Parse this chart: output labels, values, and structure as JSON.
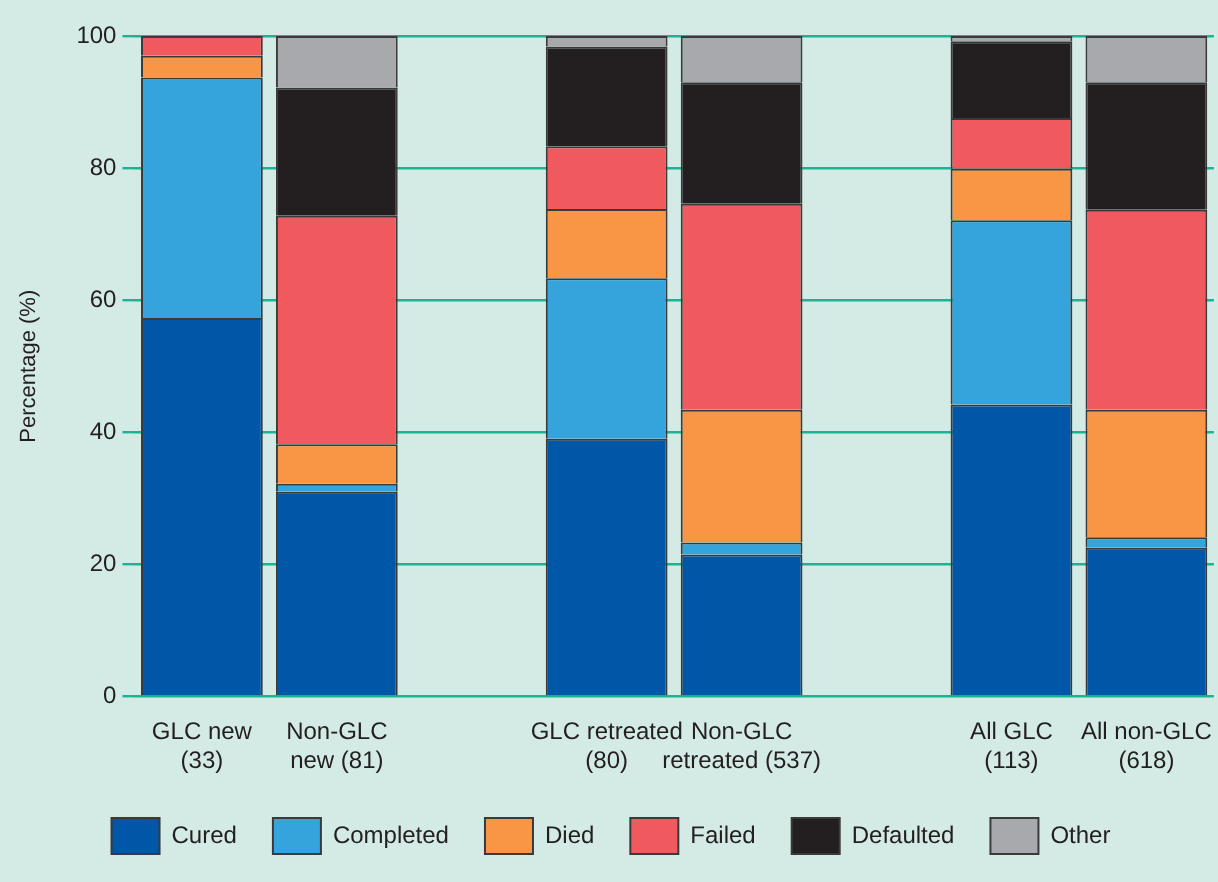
{
  "chart_data": {
    "type": "bar",
    "stacked": true,
    "ylabel": "Percentage (%)",
    "categories": [
      "GLC new\n(33)",
      "Non-GLC\nnew (81)",
      null,
      "GLC retreated\n(80)",
      "Non-GLC\nretreated (537)",
      null,
      "All GLC\n(113)",
      "All non-GLC\n(618)"
    ],
    "series": [
      {
        "name": "Cured",
        "color": "#0057a8",
        "values": [
          57.3,
          31.0,
          null,
          39.0,
          21.5,
          null,
          44.2,
          22.5
        ]
      },
      {
        "name": "Completed",
        "color": "#35a3dc",
        "values": [
          36.4,
          1.2,
          null,
          24.3,
          1.8,
          null,
          27.9,
          1.6
        ]
      },
      {
        "name": "Died",
        "color": "#f89646",
        "values": [
          3.3,
          6.0,
          null,
          10.5,
          20.1,
          null,
          7.8,
          19.3
        ]
      },
      {
        "name": "Failed",
        "color": "#f05a5e",
        "values": [
          3.0,
          34.6,
          null,
          9.5,
          31.2,
          null,
          7.7,
          30.3
        ]
      },
      {
        "name": "Defaulted",
        "color": "#231f20",
        "values": [
          0,
          19.4,
          null,
          15.1,
          18.4,
          null,
          11.6,
          19.3
        ]
      },
      {
        "name": "Other",
        "color": "#a7a9ac",
        "values": [
          0,
          7.8,
          null,
          1.6,
          7.0,
          null,
          0.8,
          7.0
        ]
      }
    ],
    "ylim": [
      0,
      100
    ],
    "yticks": [
      0,
      20,
      40,
      60,
      80,
      100
    ],
    "grid": "y",
    "legend": "bottom"
  }
}
